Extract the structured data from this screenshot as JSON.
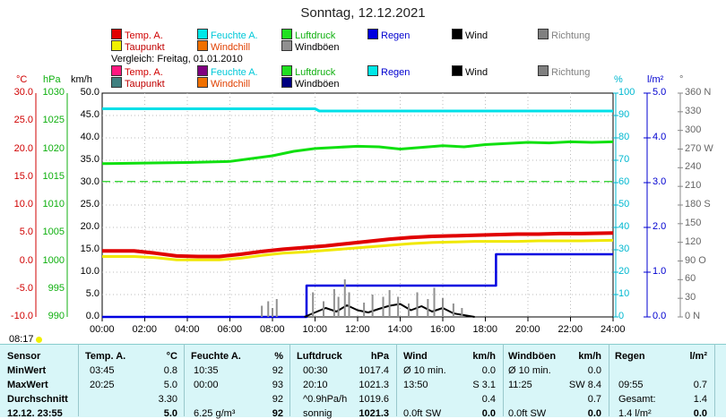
{
  "title": "Sonntag, 12.12.2021",
  "legend_top": [
    {
      "label": "Temp. A.",
      "swatch": "#e00000",
      "color": "#d00000"
    },
    {
      "label": "Feuchte A.",
      "swatch": "#00e8e8",
      "color": "#00c8d8"
    },
    {
      "label": "Luftdruck",
      "swatch": "#20e020",
      "color": "#10b010"
    },
    {
      "label": "Regen",
      "swatch": "#0000e0",
      "color": "#0000d0"
    },
    {
      "label": "Wind",
      "swatch": "#000000",
      "color": "#000000"
    },
    {
      "label": "Richtung",
      "swatch": "#808080",
      "color": "#808080"
    },
    {
      "label": "Taupunkt",
      "swatch": "#f0f000",
      "color": "#c00000"
    },
    {
      "label": "Windchill",
      "swatch": "#f07000",
      "color": "#e04000"
    },
    {
      "label": "Windböen",
      "swatch": "#909090",
      "color": "#000000"
    }
  ],
  "comparison_label": "Vergleich: Freitag, 01.01.2010",
  "legend_cmp": [
    {
      "label": "Temp. A.",
      "swatch": "#ff1880",
      "color": "#d00000"
    },
    {
      "label": "Feuchte A.",
      "swatch": "#800080",
      "color": "#00c8d8"
    },
    {
      "label": "Luftdruck",
      "swatch": "#20e020",
      "color": "#10b010"
    },
    {
      "label": "Regen",
      "swatch": "#00e8e8",
      "color": "#0000d0"
    },
    {
      "label": "Wind",
      "swatch": "#000000",
      "color": "#000000"
    },
    {
      "label": "Richtung",
      "swatch": "#808080",
      "color": "#808080"
    },
    {
      "label": "Taupunkt",
      "swatch": "#408080",
      "color": "#c00000"
    },
    {
      "label": "Windchill",
      "swatch": "#f07000",
      "color": "#e04000"
    },
    {
      "label": "Windböen",
      "swatch": "#000080",
      "color": "#000000"
    }
  ],
  "units": {
    "temp": "°C",
    "hpa": "hPa",
    "kmh": "km/h",
    "pct": "%",
    "rain": "l/m²",
    "deg": "°"
  },
  "axes": {
    "temp_ticks": [
      "30.0",
      "25.0",
      "20.0",
      "15.0",
      "10.0",
      "5.0",
      "0.0",
      "-5.0",
      "-10.0"
    ],
    "hpa_ticks": [
      "1030",
      "1025",
      "1020",
      "1015",
      "1010",
      "1005",
      "1000",
      "995",
      "990"
    ],
    "kmh_ticks": [
      "50.0",
      "45.0",
      "40.0",
      "35.0",
      "30.0",
      "25.0",
      "20.0",
      "15.0",
      "10.0",
      "5.0",
      "0.0"
    ],
    "pct_ticks": [
      "100",
      "90",
      "80",
      "70",
      "60",
      "50",
      "40",
      "30",
      "20",
      "10",
      "0"
    ],
    "rain_ticks": [
      "5.0",
      "4.0",
      "3.0",
      "2.0",
      "1.0",
      "0.0"
    ],
    "deg_ticks": [
      "360 N",
      "330",
      "300",
      "270 W",
      "240",
      "210",
      "180 S",
      "150",
      "120",
      "90 O",
      "60",
      "30",
      "0 N"
    ],
    "time_ticks": [
      "00:00",
      "02:00",
      "04:00",
      "06:00",
      "08:00",
      "10:00",
      "12:00",
      "14:00",
      "16:00",
      "18:00",
      "20:00",
      "22:00",
      "24:00"
    ]
  },
  "time_marker": "08:17",
  "chart_data": {
    "type": "line",
    "title": "Sonntag, 12.12.2021",
    "x_unit": "hours",
    "xlim": [
      0,
      24
    ],
    "ylim_temp": [
      -10,
      30
    ],
    "ylim_kmh": [
      0,
      50
    ],
    "ylim_pct": [
      0,
      100
    ],
    "ylim_rain": [
      0,
      5
    ],
    "series": [
      {
        "name": "Temp. A.",
        "axis": "temp",
        "color": "#e00000",
        "x": [
          0,
          1.5,
          2.5,
          3.5,
          4.5,
          5.5,
          6.5,
          7.5,
          8.5,
          9.5,
          10.5,
          11.5,
          12.5,
          13.5,
          14.5,
          15.5,
          16.5,
          17.5,
          18.5,
          19.5,
          20.5,
          21.5,
          22.5,
          24
        ],
        "y": [
          1.8,
          1.8,
          1.4,
          0.9,
          0.8,
          0.8,
          1.2,
          1.7,
          2.1,
          2.4,
          2.7,
          3.1,
          3.5,
          3.9,
          4.2,
          4.4,
          4.5,
          4.6,
          4.7,
          4.8,
          4.8,
          4.9,
          4.9,
          5.0
        ]
      },
      {
        "name": "Taupunkt",
        "axis": "temp",
        "color": "#f0e800",
        "x": [
          0,
          1.5,
          2.5,
          3.5,
          4.5,
          5.5,
          6.5,
          7.5,
          8.5,
          9.5,
          10.5,
          11.5,
          12.5,
          13.5,
          14.5,
          15.5,
          16.5,
          17.5,
          18.5,
          19.5,
          20.5,
          21.5,
          22.5,
          24
        ],
        "y": [
          0.8,
          0.8,
          0.6,
          0.2,
          0.2,
          0.2,
          0.5,
          1.0,
          1.4,
          1.6,
          1.9,
          2.2,
          2.5,
          2.8,
          3.1,
          3.3,
          3.4,
          3.5,
          3.5,
          3.5,
          3.6,
          3.6,
          3.6,
          3.7
        ]
      },
      {
        "name": "Feuchte A.",
        "axis": "pct",
        "color": "#00e0e8",
        "x": [
          0,
          10,
          10.2,
          24
        ],
        "y": [
          93,
          93,
          92,
          92
        ]
      },
      {
        "name": "Luftdruck",
        "axis": "hpa",
        "color": "#10e010",
        "x": [
          0,
          2,
          4,
          6,
          7,
          8,
          9,
          10,
          11,
          12,
          13,
          14,
          15,
          16,
          17,
          18,
          19,
          20,
          21,
          22,
          23,
          24
        ],
        "y": [
          1017.4,
          1017.5,
          1017.6,
          1017.8,
          1018.3,
          1018.8,
          1019.6,
          1020.1,
          1020.3,
          1020.5,
          1020.4,
          1020.0,
          1020.3,
          1020.6,
          1020.4,
          1020.8,
          1021.0,
          1021.2,
          1021.1,
          1021.3,
          1021.2,
          1021.3
        ]
      },
      {
        "name": "Regen",
        "axis": "rain",
        "color": "#0000e0",
        "x": [
          0,
          9.6,
          9.6,
          17.6,
          17.6,
          18.5,
          18.5,
          24
        ],
        "y": [
          0,
          0,
          0.7,
          0.7,
          0.7,
          0.7,
          1.4,
          1.4
        ]
      },
      {
        "name": "Wind",
        "axis": "kmh",
        "color": "#000000",
        "x": [
          9.5,
          10,
          10.5,
          11,
          11.5,
          12,
          12.5,
          13,
          13.5,
          14,
          14.5,
          15,
          15.5,
          16,
          16.5,
          17,
          17.5
        ],
        "y": [
          0,
          1.0,
          2.0,
          1.2,
          2.6,
          1.5,
          1.0,
          1.8,
          2.5,
          2.9,
          1.5,
          2.4,
          1.2,
          2.0,
          0.8,
          0.4,
          0
        ]
      }
    ],
    "comparison_pressure_hpa": 1014.2
  },
  "table": {
    "headers": {
      "sensor": "Sensor",
      "temp": "Temp. A.",
      "temp_u": "°C",
      "hum": "Feuchte A.",
      "hum_u": "%",
      "press": "Luftdruck",
      "press_u": "hPa",
      "wind": "Wind",
      "wind_u": "km/h",
      "gust": "Windböen",
      "gust_u": "km/h",
      "rain": "Regen",
      "rain_u": "l/m²"
    },
    "rows": [
      {
        "label": "MinWert",
        "t_time": "03:45",
        "t_val": "0.8",
        "h_time": "10:35",
        "h_val": "92",
        "p_time": "00:30",
        "p_val": "1017.4",
        "w_time": "Ø 10 min.",
        "w_val": "0.0",
        "g_time": "Ø 10 min.",
        "g_val": "0.0",
        "r_time": "",
        "r_val": ""
      },
      {
        "label": "MaxWert",
        "t_time": "20:25",
        "t_val": "5.0",
        "h_time": "00:00",
        "h_val": "93",
        "p_time": "20:10",
        "p_val": "1021.3",
        "w_time": "13:50",
        "w_dir": "S 3.1",
        "w_val": "",
        "g_time": "11:25",
        "g_dir": "SW 8.4",
        "g_val": "",
        "r_time": "09:55",
        "r_val": "0.7"
      },
      {
        "label": "Durchschnitt",
        "t_time": "",
        "t_val": "3.30",
        "h_time": "",
        "h_val": "92",
        "p_time": "^0.9hPa/h",
        "p_val": "1019.6",
        "w_time": "",
        "w_val": "0.4",
        "g_time": "",
        "g_val": "0.7",
        "r_time": "Gesamt:",
        "r_val": "1.4"
      },
      {
        "label": "12.12. 23:55",
        "t_time": "",
        "t_val": "5.0",
        "h_time": "6.25 g/m³",
        "h_val": "92",
        "p_time": "sonnig",
        "p_val": "1021.3",
        "w_time": "0.0ft SW",
        "w_val": "0.0",
        "g_time": "0.0ft SW",
        "g_val": "0.0",
        "r_time": "1.4 l/m²",
        "r_val": "0.0"
      }
    ]
  }
}
